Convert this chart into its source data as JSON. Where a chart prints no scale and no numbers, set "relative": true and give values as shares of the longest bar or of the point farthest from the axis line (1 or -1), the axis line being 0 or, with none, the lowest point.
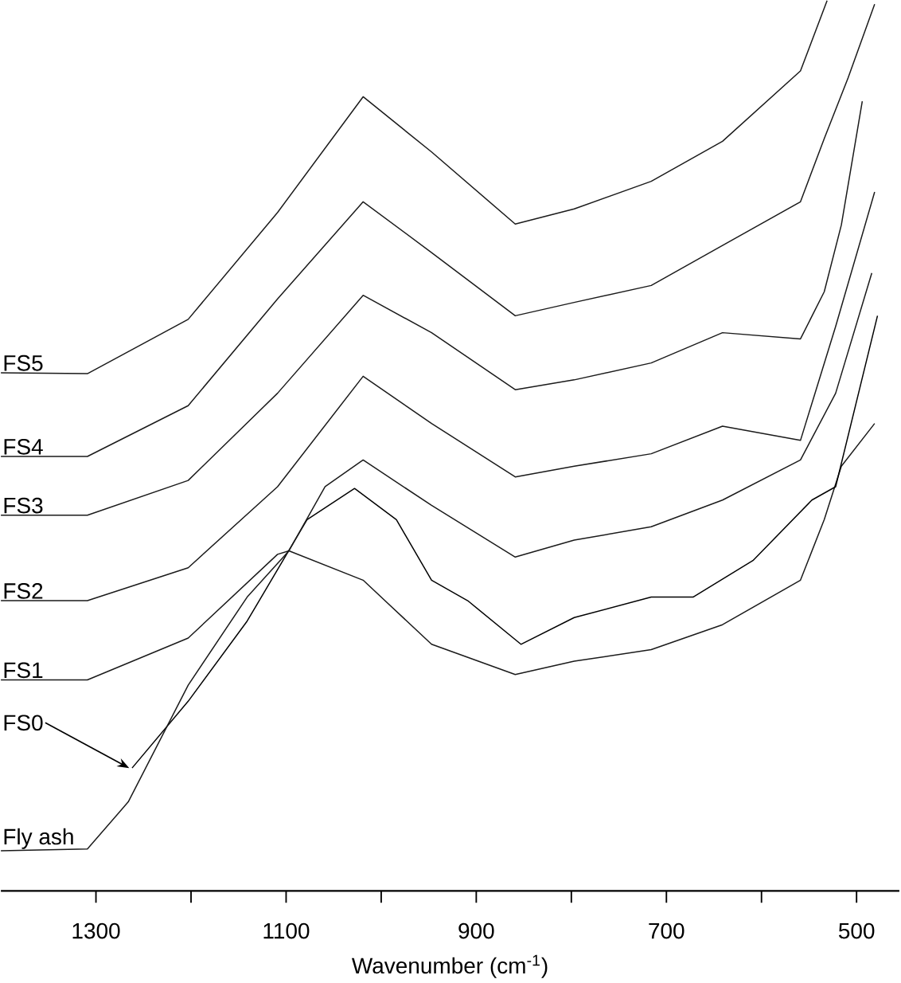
{
  "chart_data": {
    "type": "line",
    "relative": true,
    "xlabel": "Wavenumber (cm$^{-1}$)",
    "xlim": [
      1400,
      455
    ],
    "xticks": [
      1300,
      {
        "value": 1200,
        "label": null
      },
      1100,
      {
        "value": 1000,
        "label": null
      },
      900,
      {
        "value": 800,
        "label": null
      },
      700,
      {
        "value": 600,
        "label": null
      },
      500
    ],
    "marker": "none",
    "line_style": "solid",
    "tick_labels": "x",
    "series": [
      {
        "name": "FS5",
        "color": "#1a1a1a",
        "x": [
          1400,
          1309,
          1203,
          1109,
          1019,
          947,
          859,
          797,
          716,
          641,
          559,
          531
        ],
        "values": [
          0.582,
          0.581,
          0.642,
          0.762,
          0.892,
          0.83,
          0.749,
          0.766,
          0.797,
          0.842,
          0.921,
          1.0
        ]
      },
      {
        "name": "FS4",
        "color": "#1a1a1a",
        "x": [
          1400,
          1309,
          1203,
          1109,
          1019,
          947,
          859,
          797,
          716,
          641,
          559,
          534,
          509,
          481
        ],
        "values": [
          0.488,
          0.488,
          0.545,
          0.665,
          0.774,
          0.717,
          0.646,
          0.661,
          0.68,
          0.725,
          0.774,
          0.845,
          0.913,
          0.996
        ]
      },
      {
        "name": "FS3",
        "color": "#1a1a1a",
        "x": [
          1400,
          1309,
          1203,
          1109,
          1019,
          947,
          859,
          797,
          716,
          641,
          559,
          534,
          516,
          494
        ],
        "values": [
          0.422,
          0.422,
          0.461,
          0.559,
          0.669,
          0.627,
          0.563,
          0.574,
          0.593,
          0.627,
          0.62,
          0.673,
          0.748,
          0.887
        ]
      },
      {
        "name": "FS2",
        "color": "#1a1a1a",
        "x": [
          1400,
          1309,
          1203,
          1109,
          1019,
          947,
          859,
          797,
          716,
          641,
          559,
          522,
          481
        ],
        "values": [
          0.326,
          0.326,
          0.363,
          0.454,
          0.578,
          0.525,
          0.465,
          0.477,
          0.491,
          0.522,
          0.506,
          0.634,
          0.785
        ]
      },
      {
        "name": "FS1",
        "color": "#1a1a1a",
        "x": [
          1400,
          1309,
          1203,
          1109,
          1097,
          1019,
          947,
          859,
          797,
          716,
          641,
          559,
          534,
          516,
          481
        ],
        "values": [
          0.237,
          0.237,
          0.284,
          0.378,
          0.382,
          0.349,
          0.277,
          0.243,
          0.258,
          0.271,
          0.299,
          0.349,
          0.417,
          0.477,
          0.525
        ]
      },
      {
        "name": "FS0",
        "color": "#000000",
        "x": [
          1262,
          1203,
          1141,
          1078,
          1028,
          984,
          947,
          909,
          853,
          797,
          716,
          672,
          609,
          547,
          522,
          478
        ],
        "values": [
          0.138,
          0.213,
          0.303,
          0.417,
          0.452,
          0.417,
          0.349,
          0.326,
          0.277,
          0.307,
          0.33,
          0.33,
          0.371,
          0.439,
          0.454,
          0.646
        ]
      },
      {
        "name": "Fly ash",
        "color": "#1a1a1a",
        "x": [
          1400,
          1309,
          1266,
          1203,
          1141,
          1097,
          1059,
          1019,
          947,
          859,
          797,
          716,
          641,
          559,
          522,
          484
        ],
        "values": [
          0.045,
          0.047,
          0.1,
          0.231,
          0.33,
          0.382,
          0.454,
          0.484,
          0.433,
          0.375,
          0.394,
          0.409,
          0.439,
          0.484,
          0.559,
          0.694
        ]
      }
    ]
  }
}
